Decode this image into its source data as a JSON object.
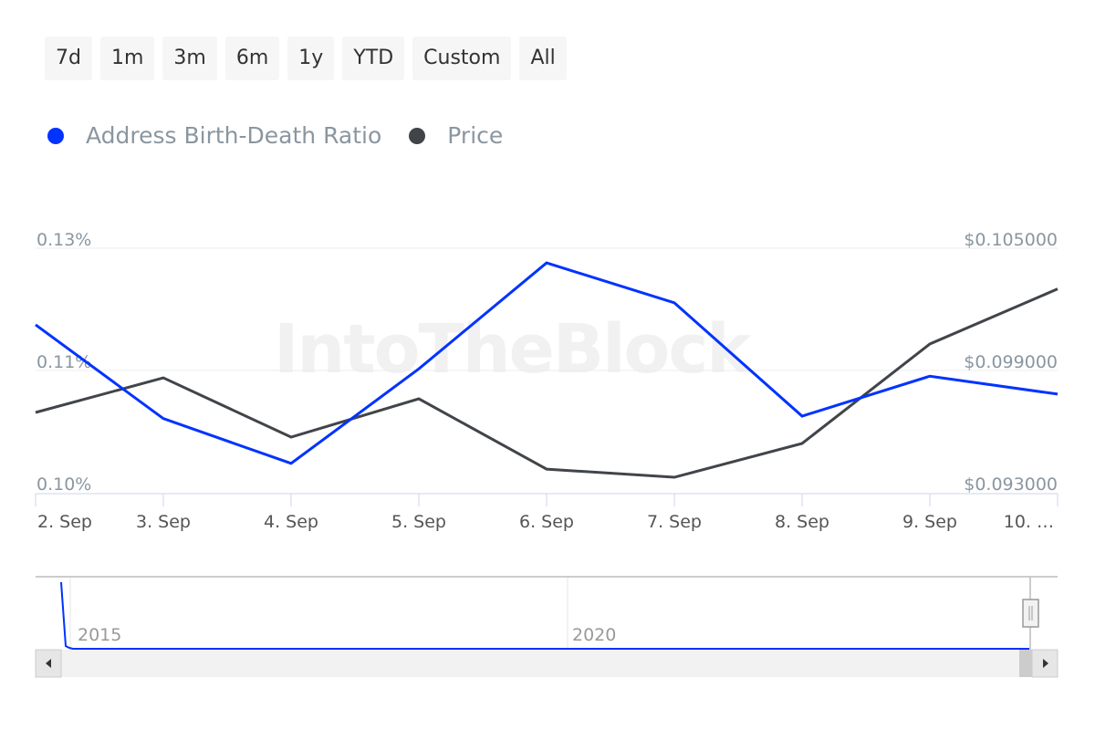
{
  "range_buttons": [
    "7d",
    "1m",
    "3m",
    "6m",
    "1y",
    "YTD",
    "Custom",
    "All"
  ],
  "watermark": "IntoTheBlock",
  "navigator": {
    "labels": [
      "2015",
      "2020"
    ]
  },
  "colors": {
    "ratio": "#0033ff",
    "price": "#41454a"
  },
  "chart_data": {
    "type": "line",
    "x": [
      "2. Sep",
      "3. Sep",
      "4. Sep",
      "5. Sep",
      "6. Sep",
      "7. Sep",
      "8. Sep",
      "9. Sep",
      "10. …"
    ],
    "series": [
      {
        "name": "Address Birth-Death Ratio",
        "axis": "left",
        "unit": "%",
        "values": [
          0.1206,
          0.1091,
          0.1036,
          0.1152,
          0.1282,
          0.1233,
          0.1094,
          0.1143,
          0.1121
        ]
      },
      {
        "name": "Price",
        "axis": "right",
        "unit": "$",
        "values": [
          0.09694,
          0.09864,
          0.09573,
          0.09761,
          0.09416,
          0.09376,
          0.09542,
          0.1003,
          0.103
        ]
      }
    ],
    "y_left": {
      "ticks": [
        "0.13%",
        "0.11%",
        "0.10%"
      ],
      "range": [
        0.1,
        0.13
      ]
    },
    "y_right": {
      "ticks": [
        "$0.105000",
        "$0.099000",
        "$0.093000"
      ],
      "range": [
        0.093,
        0.105
      ]
    },
    "legend": "top-left",
    "grid": true
  }
}
